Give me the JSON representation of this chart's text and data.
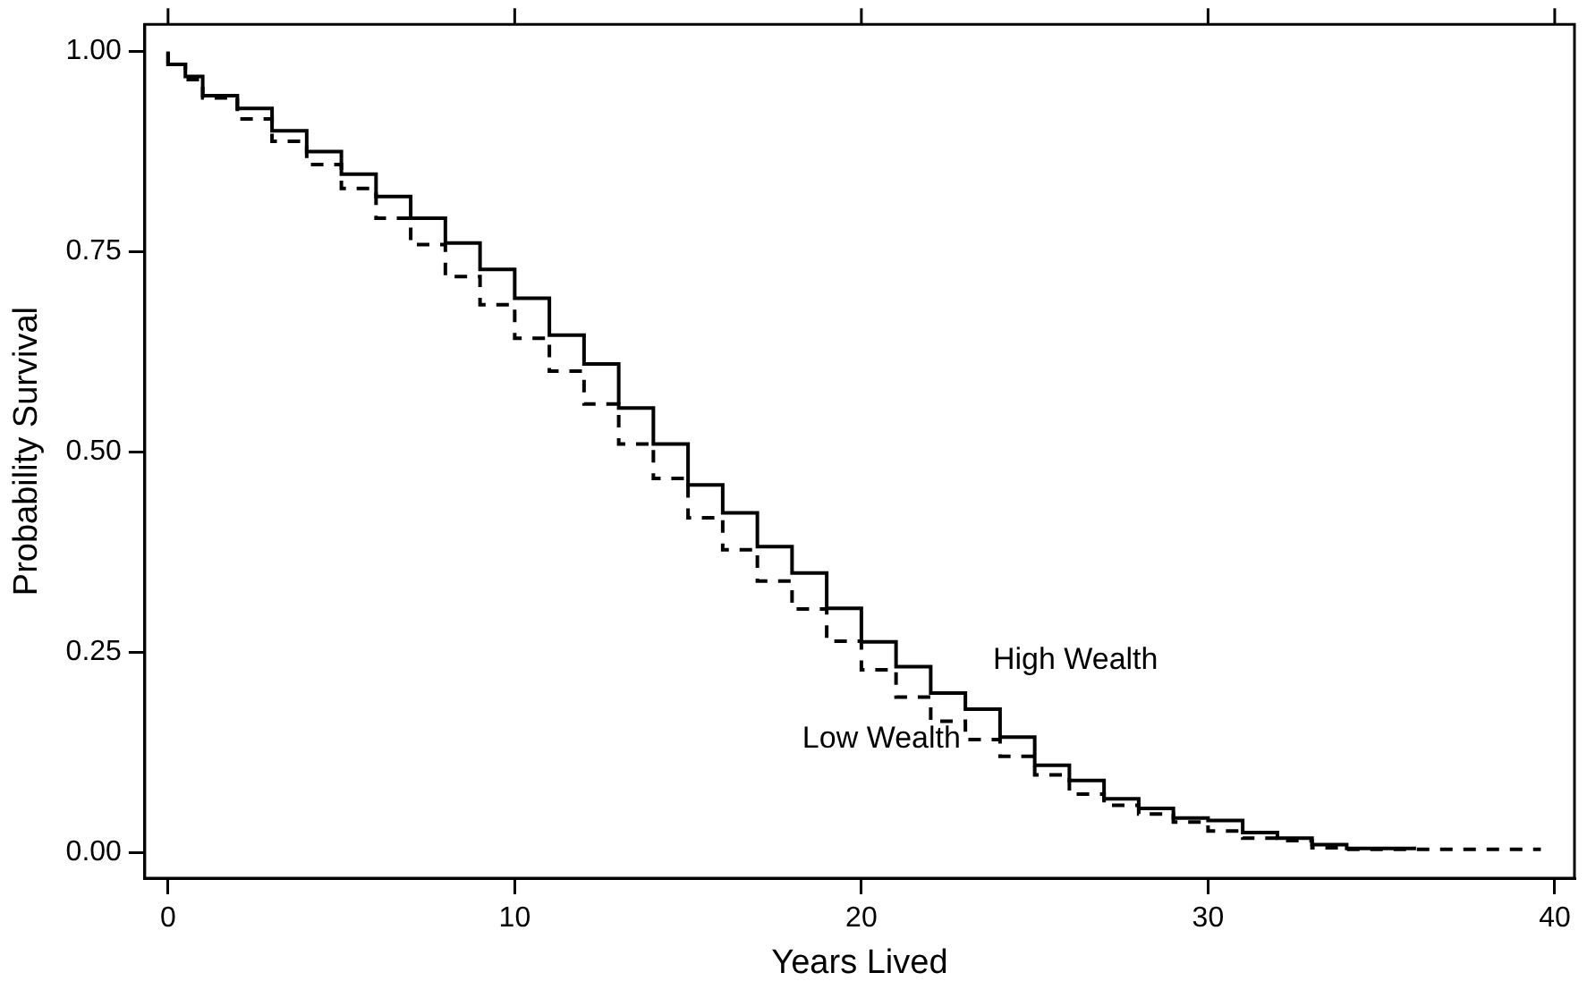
{
  "chart_data": {
    "type": "step",
    "xlabel": "Years Lived",
    "ylabel": "Probability Survival",
    "series": [
      {
        "name": "High Wealth",
        "color": "#000000",
        "line_style": "solid",
        "x": [
          0,
          0.5,
          1,
          2,
          3,
          4,
          5,
          6,
          7,
          8,
          9,
          10,
          11,
          12,
          13,
          14,
          15,
          16,
          17,
          18,
          19,
          20,
          21,
          22,
          23,
          24,
          25,
          26,
          27,
          28,
          29,
          30,
          31,
          32,
          33,
          34,
          35,
          36
        ],
        "values": [
          1.0,
          0.984,
          0.969,
          0.945,
          0.929,
          0.901,
          0.875,
          0.847,
          0.819,
          0.792,
          0.761,
          0.728,
          0.692,
          0.646,
          0.61,
          0.555,
          0.51,
          0.459,
          0.424,
          0.382,
          0.349,
          0.305,
          0.263,
          0.232,
          0.199,
          0.179,
          0.144,
          0.109,
          0.09,
          0.067,
          0.055,
          0.043,
          0.04,
          0.025,
          0.018,
          0.01,
          0.005,
          0.005
        ]
      },
      {
        "name": "Low Wealth",
        "color": "#000000",
        "line_style": "dashed",
        "x": [
          0,
          0.5,
          1,
          2,
          3,
          4,
          5,
          6,
          7,
          8,
          9,
          10,
          11,
          12,
          13,
          14,
          15,
          16,
          17,
          18,
          19,
          20,
          21,
          22,
          23,
          24,
          25,
          26,
          27,
          28,
          29,
          30,
          31,
          32,
          33,
          34,
          35,
          39.6
        ],
        "values": [
          1.0,
          0.984,
          0.965,
          0.942,
          0.916,
          0.888,
          0.859,
          0.829,
          0.792,
          0.759,
          0.719,
          0.684,
          0.642,
          0.601,
          0.56,
          0.51,
          0.467,
          0.418,
          0.378,
          0.339,
          0.304,
          0.264,
          0.228,
          0.194,
          0.164,
          0.141,
          0.12,
          0.097,
          0.073,
          0.059,
          0.048,
          0.038,
          0.027,
          0.018,
          0.015,
          0.006,
          0.004,
          0.004
        ]
      }
    ],
    "xlim": [
      -0.67,
      40.57
    ],
    "xticks": [
      0,
      10,
      20,
      30,
      40
    ],
    "ylim": [
      -0.032,
      1.034
    ],
    "yticks": [
      {
        "value": 0,
        "label": "0.00"
      },
      {
        "value": 0.25,
        "label": "0.25"
      },
      {
        "value": 0.5,
        "label": "0.50"
      },
      {
        "value": 0.75,
        "label": "0.75"
      },
      {
        "value": 1,
        "label": "1.00"
      }
    ],
    "grid": false,
    "legend": false,
    "marker": "none"
  }
}
